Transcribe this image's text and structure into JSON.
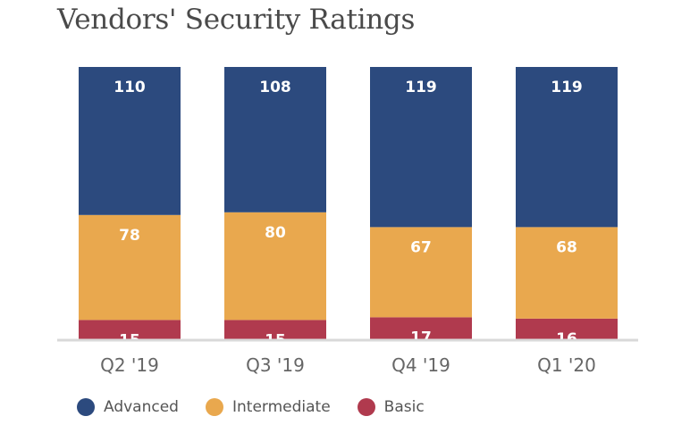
{
  "chart_data": {
    "type": "bar",
    "stacked": true,
    "title": "Vendors' Security Ratings",
    "categories": [
      "Q2 '19",
      "Q3 '19",
      "Q4 '19",
      "Q1 '20"
    ],
    "series": [
      {
        "name": "Basic",
        "values": [
          15,
          15,
          17,
          16
        ],
        "color": "#b03a4e"
      },
      {
        "name": "Intermediate",
        "values": [
          78,
          80,
          67,
          68
        ],
        "color": "#e9a84e"
      },
      {
        "name": "Advanced",
        "values": [
          110,
          108,
          119,
          119
        ],
        "color": "#2c4a7e"
      }
    ],
    "legend_order": [
      "Advanced",
      "Intermediate",
      "Basic"
    ],
    "legend_position": "bottom-left",
    "grid": false,
    "axis_color": "#d9d9d9",
    "label_color": "#ffffff"
  }
}
